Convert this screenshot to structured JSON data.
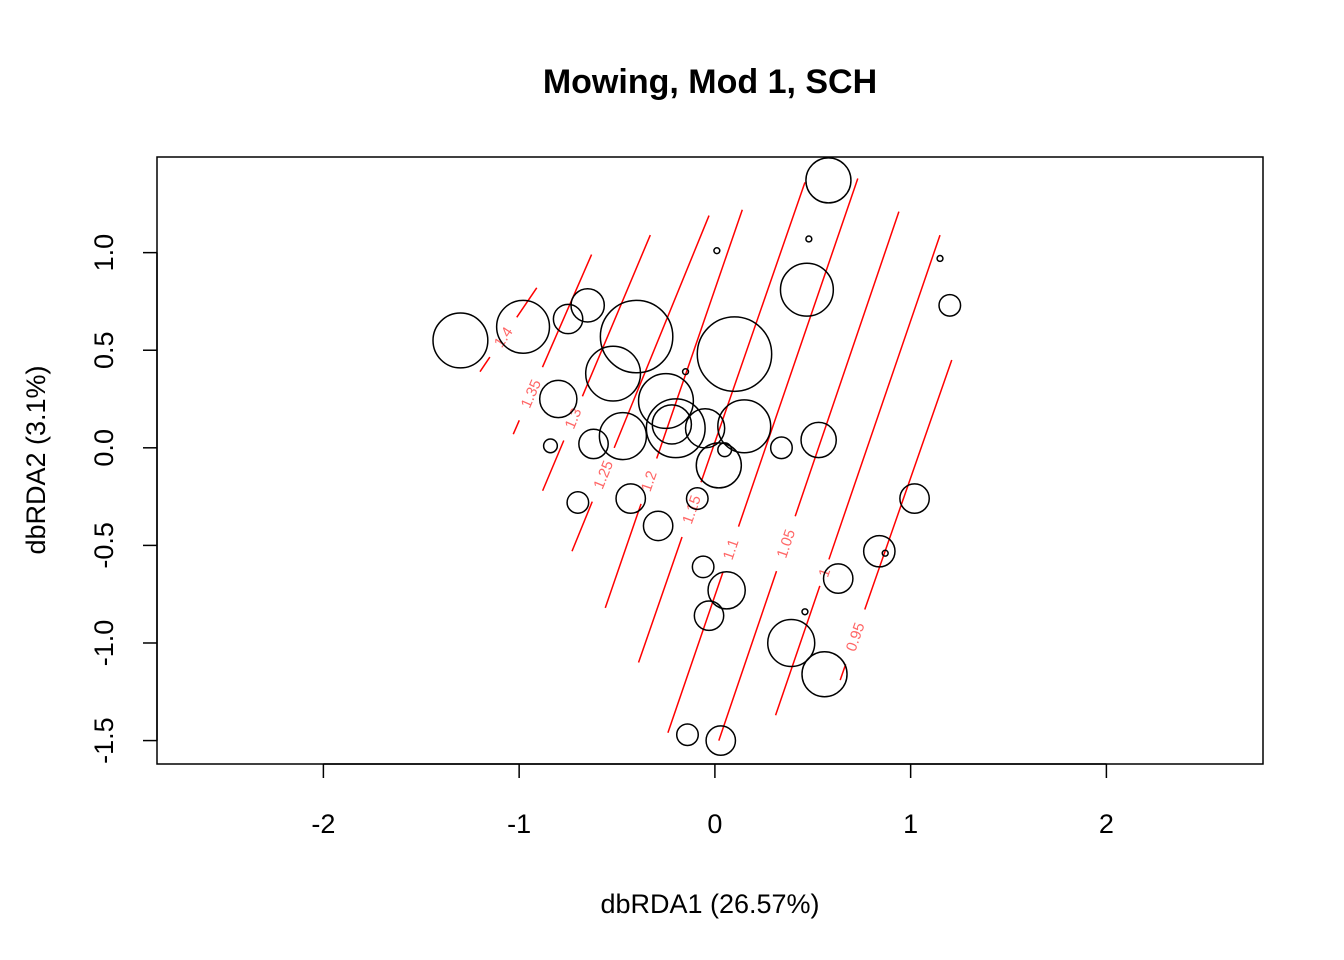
{
  "chart_data": {
    "type": "scatter",
    "title": "Mowing, Mod 1, SCH",
    "xlabel": "dbRDA1 (26.57%)",
    "ylabel": "dbRDA2 (3.1%)",
    "xlim": [
      -2.85,
      2.8
    ],
    "ylim": [
      -1.62,
      1.49
    ],
    "x_ticks": [
      -2,
      -1,
      0,
      1,
      2
    ],
    "y_ticks": [
      -1.5,
      -1.0,
      -0.5,
      0.0,
      0.5,
      1.0
    ],
    "grid": false,
    "legend": "none",
    "colors": {
      "points": "#000000",
      "contours": "#ff0000",
      "contour_labels": "#ff6666"
    },
    "points": [
      {
        "x": 0.58,
        "y": 1.37,
        "r": 0.115
      },
      {
        "x": 0.01,
        "y": 1.01,
        "r": 0.015
      },
      {
        "x": 0.48,
        "y": 1.07,
        "r": 0.015
      },
      {
        "x": 1.15,
        "y": 0.97,
        "r": 0.015
      },
      {
        "x": 0.47,
        "y": 0.81,
        "r": 0.135
      },
      {
        "x": 1.2,
        "y": 0.73,
        "r": 0.055
      },
      {
        "x": -0.65,
        "y": 0.73,
        "r": 0.085
      },
      {
        "x": -0.75,
        "y": 0.66,
        "r": 0.075
      },
      {
        "x": -0.98,
        "y": 0.62,
        "r": 0.135
      },
      {
        "x": -1.3,
        "y": 0.55,
        "r": 0.14
      },
      {
        "x": -0.4,
        "y": 0.57,
        "r": 0.185
      },
      {
        "x": 0.1,
        "y": 0.48,
        "r": 0.19
      },
      {
        "x": -0.52,
        "y": 0.38,
        "r": 0.14
      },
      {
        "x": -0.15,
        "y": 0.39,
        "r": 0.015
      },
      {
        "x": -0.8,
        "y": 0.25,
        "r": 0.095
      },
      {
        "x": -0.25,
        "y": 0.24,
        "r": 0.14
      },
      {
        "x": -0.2,
        "y": 0.1,
        "r": 0.15
      },
      {
        "x": -0.22,
        "y": 0.12,
        "r": 0.1
      },
      {
        "x": -0.05,
        "y": 0.1,
        "r": 0.1
      },
      {
        "x": 0.15,
        "y": 0.11,
        "r": 0.135
      },
      {
        "x": -0.47,
        "y": 0.06,
        "r": 0.12
      },
      {
        "x": -0.62,
        "y": 0.02,
        "r": 0.075
      },
      {
        "x": -0.84,
        "y": 0.01,
        "r": 0.035
      },
      {
        "x": 0.53,
        "y": 0.04,
        "r": 0.09
      },
      {
        "x": 0.34,
        "y": 0.0,
        "r": 0.055
      },
      {
        "x": 0.05,
        "y": -0.01,
        "r": 0.035
      },
      {
        "x": 0.02,
        "y": -0.09,
        "r": 0.115
      },
      {
        "x": -0.43,
        "y": -0.26,
        "r": 0.075
      },
      {
        "x": -0.7,
        "y": -0.28,
        "r": 0.055
      },
      {
        "x": -0.09,
        "y": -0.26,
        "r": 0.055
      },
      {
        "x": 1.02,
        "y": -0.26,
        "r": 0.075
      },
      {
        "x": -0.29,
        "y": -0.4,
        "r": 0.075
      },
      {
        "x": 0.84,
        "y": -0.53,
        "r": 0.08
      },
      {
        "x": 0.87,
        "y": -0.54,
        "r": 0.015
      },
      {
        "x": -0.06,
        "y": -0.61,
        "r": 0.055
      },
      {
        "x": 0.63,
        "y": -0.67,
        "r": 0.075
      },
      {
        "x": 0.06,
        "y": -0.73,
        "r": 0.095
      },
      {
        "x": 0.46,
        "y": -0.84,
        "r": 0.015
      },
      {
        "x": -0.03,
        "y": -0.86,
        "r": 0.075
      },
      {
        "x": 0.39,
        "y": -1.0,
        "r": 0.12
      },
      {
        "x": 0.56,
        "y": -1.16,
        "r": 0.115
      },
      {
        "x": -0.14,
        "y": -1.47,
        "r": 0.055
      },
      {
        "x": 0.03,
        "y": -1.5,
        "r": 0.075
      }
    ],
    "contours": [
      {
        "label": "1.4",
        "x1": -1.2,
        "y1": 0.39,
        "x2": -0.91,
        "y2": 0.82,
        "lx": -1.13,
        "ly": 0.6
      },
      {
        "label": "1.35",
        "x1": -1.03,
        "y1": 0.07,
        "x2": -0.63,
        "y2": 0.99,
        "lx": -0.97,
        "ly": 0.29
      },
      {
        "label": "1.3",
        "x1": -0.88,
        "y1": -0.22,
        "x2": -0.33,
        "y2": 1.09,
        "lx": -0.77,
        "ly": 0.17
      },
      {
        "label": "1.25",
        "x1": -0.73,
        "y1": -0.53,
        "x2": -0.03,
        "y2": 1.19,
        "lx": -0.59,
        "ly": -0.13
      },
      {
        "label": "1.2",
        "x1": -0.56,
        "y1": -0.82,
        "x2": 0.14,
        "y2": 1.22,
        "lx": -0.34,
        "ly": -0.17
      },
      {
        "label": "1.15",
        "x1": -0.39,
        "y1": -1.1,
        "x2": 0.46,
        "y2": 1.36,
        "lx": -0.11,
        "ly": -0.32
      },
      {
        "label": "1.1",
        "x1": -0.24,
        "y1": -1.46,
        "x2": 0.73,
        "y2": 1.38,
        "lx": 0.08,
        "ly": -0.52
      },
      {
        "label": "1.05",
        "x1": 0.02,
        "y1": -1.5,
        "x2": 0.94,
        "y2": 1.21,
        "lx": 0.33,
        "ly": -0.48
      },
      {
        "label": "1",
        "x1": 0.31,
        "y1": -1.37,
        "x2": 1.15,
        "y2": 1.09,
        "lx": 0.56,
        "ly": -0.64
      },
      {
        "label": "0.95",
        "x1": 0.64,
        "y1": -1.19,
        "x2": 1.21,
        "y2": 0.45,
        "lx": 0.72,
        "ly": -0.97
      }
    ]
  }
}
